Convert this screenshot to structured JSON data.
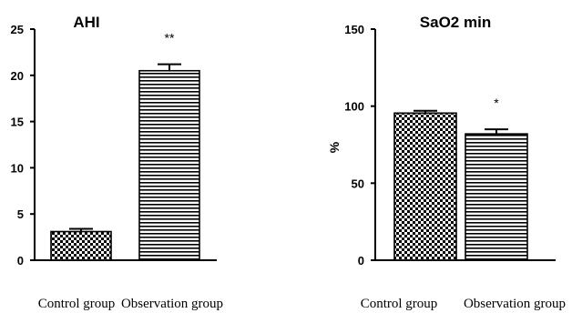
{
  "chart_data": [
    {
      "type": "bar",
      "title": "AHI",
      "ylabel": "",
      "xlabel": "",
      "categories": [
        "Control group",
        "Observation group"
      ],
      "values": [
        3.1,
        20.5
      ],
      "errors": [
        0.3,
        0.7
      ],
      "significance": [
        "",
        "**"
      ],
      "patterns": [
        "checker",
        "hstripe"
      ],
      "ylim": [
        0,
        25
      ],
      "yticks": [
        0,
        5,
        10,
        15,
        20,
        25
      ],
      "grid": false
    },
    {
      "type": "bar",
      "title": "SaO2 min",
      "ylabel": "%",
      "xlabel": "",
      "categories": [
        "Control group",
        "Observation group"
      ],
      "values": [
        95.5,
        82
      ],
      "errors": [
        1.5,
        3
      ],
      "significance": [
        "",
        "*"
      ],
      "patterns": [
        "checker",
        "hstripe"
      ],
      "ylim": [
        0,
        150
      ],
      "yticks": [
        0,
        50,
        100,
        150
      ],
      "grid": false
    }
  ]
}
